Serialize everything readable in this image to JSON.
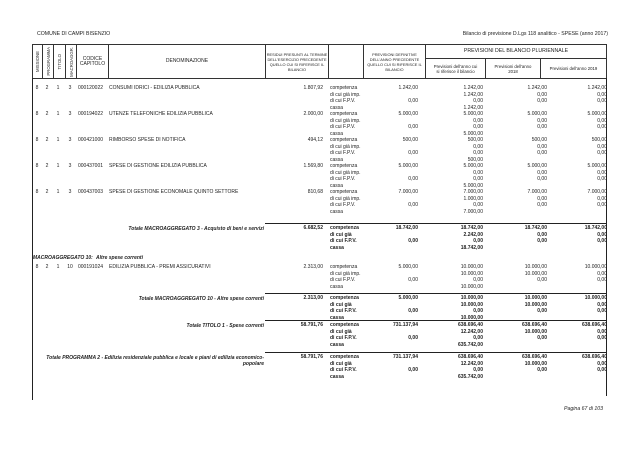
{
  "header": {
    "ente": "COMUNE DI CAMPI BISENZIO",
    "titolo": "Bilancio di previsione D.Lgs 118 analitico - SPESE (anno 2017)"
  },
  "columns": {
    "missione": "MISSIONE",
    "programma": "PROGRAMMA",
    "titolo": "TITOLO",
    "macroagg": "MACROAGGR.",
    "codice": "CODICE CAPITOLO",
    "denominazione": "DENOMINAZIONE",
    "residui": "RESIDUI PRESUNTI AL TERMINE DELL'ESERCIZIO PRECEDENTE QUELLO CUI SI RIFERISCE IL BILANCIO",
    "prev_def": "PREVISIONI DEFINITIVE DELL'ANNO PRECEDENTE QUELLO CUI SI RIFERISCE IL BILANCIO",
    "pluriennale": "PREVISIONI DEL BILANCIO PLURIENNALE",
    "anno1": "Previsioni dell'anno cui si riferisce il bilancio",
    "anno2": "Previsioni dell'anno 2018",
    "anno3": "Previsioni dell'anno 2019"
  },
  "blocks": [
    {
      "kind": "row",
      "missione": "8",
      "programma": "2",
      "titolo": "1",
      "macroagg": "3",
      "codice": "000120022",
      "denominazione": "CONSUMI IDRICI - EDILIZIA PUBBLICA",
      "residui": "1.807,92",
      "lines": [
        [
          "competenza",
          "1.242,00",
          "1.242,00",
          "1.242,00",
          "1.242,00"
        ],
        [
          "di cui già imp.",
          "",
          "1.242,00",
          "0,00",
          "0,00"
        ],
        [
          "di cui F.P.V.",
          "0,00",
          "0,00",
          "0,00",
          "0,00"
        ],
        [
          "cassa",
          "",
          "1.242,00",
          "",
          ""
        ]
      ]
    },
    {
      "kind": "row",
      "missione": "8",
      "programma": "2",
      "titolo": "1",
      "macroagg": "3",
      "codice": "000194022",
      "denominazione": "UTENZE TELEFONICHE EDILIZIA PUBBLICA",
      "residui": "2.000,00",
      "lines": [
        [
          "competenza",
          "5.000,00",
          "5.000,00",
          "5.000,00",
          "5.000,00"
        ],
        [
          "di cui già imp.",
          "",
          "0,00",
          "0,00",
          "0,00"
        ],
        [
          "di cui F.P.V.",
          "0,00",
          "0,00",
          "0,00",
          "0,00"
        ],
        [
          "cassa",
          "",
          "5.000,00",
          "",
          ""
        ]
      ]
    },
    {
      "kind": "row",
      "missione": "8",
      "programma": "2",
      "titolo": "1",
      "macroagg": "3",
      "codice": "000421000",
      "denominazione": "RIMBORSO SPESE DI NOTIFICA",
      "residui": "494,12",
      "lines": [
        [
          "competenza",
          "500,00",
          "500,00",
          "500,00",
          "500,00"
        ],
        [
          "di cui già imp.",
          "",
          "0,00",
          "0,00",
          "0,00"
        ],
        [
          "di cui F.P.V.",
          "0,00",
          "0,00",
          "0,00",
          "0,00"
        ],
        [
          "cassa",
          "",
          "500,00",
          "",
          ""
        ]
      ]
    },
    {
      "kind": "row",
      "missione": "8",
      "programma": "2",
      "titolo": "1",
      "macroagg": "3",
      "codice": "000437001",
      "denominazione": "SPESE DI GESTIONE EDILIZIA PUBBLICA",
      "residui": "1.569,80",
      "lines": [
        [
          "competenza",
          "5.000,00",
          "5.000,00",
          "5.000,00",
          "5.000,00"
        ],
        [
          "di cui già imp.",
          "",
          "0,00",
          "0,00",
          "0,00"
        ],
        [
          "di cui F.P.V.",
          "0,00",
          "0,00",
          "0,00",
          "0,00"
        ],
        [
          "cassa",
          "",
          "5.000,00",
          "",
          ""
        ]
      ]
    },
    {
      "kind": "row",
      "missione": "8",
      "programma": "2",
      "titolo": "1",
      "macroagg": "3",
      "codice": "000437003",
      "denominazione": "SPESE DI GESTIONE ECONOMALE QUINTO SETTORE",
      "residui": "810,68",
      "lines": [
        [
          "competenza",
          "7.000,00",
          "7.000,00",
          "7.000,00",
          "7.000,00"
        ],
        [
          "di cui già imp.",
          "",
          "1.000,00",
          "0,00",
          "0,00"
        ],
        [
          "di cui F.P.V.",
          "0,00",
          "0,00",
          "0,00",
          "0,00"
        ],
        [
          "cassa",
          "",
          "7.000,00",
          "",
          ""
        ]
      ]
    },
    {
      "kind": "total",
      "denominazione": "Totale MACROAGGREGATO 3 - Acquisto di beni e servizi",
      "residui": "6.682,52",
      "lines": [
        [
          "competenza",
          "18.742,00",
          "18.742,00",
          "18.742,00",
          "18.742,00"
        ],
        [
          "di cui già",
          "",
          "2.242,00",
          "0,00",
          "0,00"
        ],
        [
          "di cui F.P.V.",
          "0,00",
          "0,00",
          "0,00",
          "0,00"
        ],
        [
          "cassa",
          "",
          "18.742,00",
          "",
          ""
        ]
      ]
    },
    {
      "kind": "section",
      "label": "MACROAGGREGATO 10:",
      "desc": "Altre spese correnti"
    },
    {
      "kind": "row",
      "missione": "8",
      "programma": "2",
      "titolo": "1",
      "macroagg": "10",
      "codice": "000191024",
      "denominazione": "EDILIZIA PUBBLICA - PREMI ASSICURATIVI",
      "residui": "2.313,00",
      "lines": [
        [
          "competenza",
          "5.000,00",
          "10.000,00",
          "10.000,00",
          "10.000,00"
        ],
        [
          "di cui già imp.",
          "",
          "10.000,00",
          "10.000,00",
          "0,00"
        ],
        [
          "di cui F.P.V.",
          "0,00",
          "0,00",
          "0,00",
          "0,00"
        ],
        [
          "cassa",
          "",
          "10.000,00",
          "",
          ""
        ]
      ]
    },
    {
      "kind": "total",
      "denominazione": "Totale MACROAGGREGATO 10 - Altre spese correnti",
      "residui": "2.313,00",
      "lines": [
        [
          "competenza",
          "5.000,00",
          "10.000,00",
          "10.000,00",
          "10.000,00"
        ],
        [
          "di cui già",
          "",
          "10.000,00",
          "10.000,00",
          "0,00"
        ],
        [
          "di cui F.P.V.",
          "0,00",
          "0,00",
          "0,00",
          "0,00"
        ],
        [
          "cassa",
          "",
          "10.000,00",
          "",
          ""
        ]
      ]
    },
    {
      "kind": "total",
      "denominazione": "Totale TITOLO 1 - Spese correnti",
      "residui": "58.791,76",
      "lines": [
        [
          "competenza",
          "731.137,94",
          "638.696,40",
          "638.696,40",
          "638.696,40"
        ],
        [
          "di cui già",
          "",
          "12.242,00",
          "10.000,00",
          "0,00"
        ],
        [
          "di cui F.P.V.",
          "0,00",
          "0,00",
          "0,00",
          "0,00"
        ],
        [
          "cassa",
          "",
          "635.742,00",
          "",
          ""
        ]
      ]
    },
    {
      "kind": "total",
      "denominazione": "Totale PROGRAMMA 2 - Edilizia residenziale pubblica e locale e piani di edilizia economico-popolare",
      "residui": "58.791,76",
      "lines": [
        [
          "competenza",
          "731.137,94",
          "638.696,40",
          "638.696,40",
          "638.696,40"
        ],
        [
          "di cui già",
          "",
          "12.242,00",
          "10.000,00",
          "0,00"
        ],
        [
          "di cui F.P.V.",
          "0,00",
          "0,00",
          "0,00",
          "0,00"
        ],
        [
          "cassa",
          "",
          "635.742,00",
          "",
          ""
        ]
      ]
    }
  ],
  "footer": {
    "pagina": "Pagina 67 di 103"
  }
}
